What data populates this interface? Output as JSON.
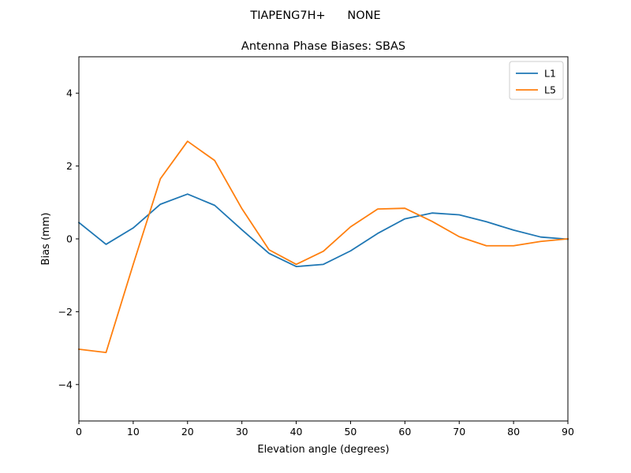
{
  "suptitle": "TIAPENG7H+      NONE",
  "chart_data": {
    "type": "line",
    "title": "Antenna Phase Biases: SBAS",
    "xlabel": "Elevation angle (degrees)",
    "ylabel": "Bias (mm)",
    "xlim": [
      0,
      90
    ],
    "ylim": [
      -5,
      5
    ],
    "xticks": [
      0,
      10,
      20,
      30,
      40,
      50,
      60,
      70,
      80,
      90
    ],
    "yticks": [
      -4,
      -2,
      0,
      2,
      4
    ],
    "ytick_labels": [
      "−4",
      "−2",
      "0",
      "2",
      "4"
    ],
    "grid": false,
    "legend_position": "top-right",
    "x": [
      0,
      5,
      10,
      15,
      20,
      25,
      30,
      35,
      40,
      45,
      50,
      55,
      60,
      65,
      70,
      75,
      80,
      85,
      90
    ],
    "series": [
      {
        "name": "L1",
        "color": "#1f77b4",
        "values": [
          0.45,
          -0.15,
          0.3,
          0.95,
          1.23,
          0.92,
          0.25,
          -0.4,
          -0.76,
          -0.7,
          -0.33,
          0.15,
          0.55,
          0.71,
          0.66,
          0.47,
          0.24,
          0.05,
          -0.01
        ]
      },
      {
        "name": "L5",
        "color": "#ff7f0e",
        "values": [
          -3.03,
          -3.12,
          -0.7,
          1.65,
          2.68,
          2.15,
          0.83,
          -0.3,
          -0.7,
          -0.34,
          0.33,
          0.82,
          0.84,
          0.48,
          0.06,
          -0.19,
          -0.19,
          -0.07,
          0.0
        ]
      }
    ]
  }
}
